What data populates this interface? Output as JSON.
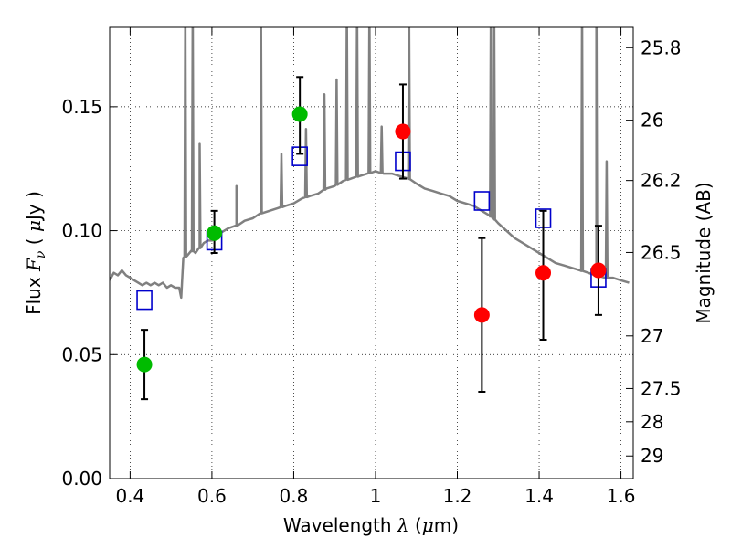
{
  "chart_data": {
    "type": "scatter",
    "xlabel": "Wavelength  λ (μm)",
    "ylabel": "Flux  F_ν  ( μJy )",
    "ylabel_parts": {
      "pre": "Flux ",
      "var": "F",
      "sub": "ν",
      "mid": "  ( ",
      "mu": "μ",
      "post": "Jy )"
    },
    "xlabel_parts": {
      "pre": "Wavelength  ",
      "var": "λ",
      "mid": " (",
      "mu": "μ",
      "post": "m)"
    },
    "y2label": "Magnitude (AB)",
    "xlim": [
      0.35,
      1.63
    ],
    "ylim": [
      0.0,
      0.182
    ],
    "x_ticks": [
      {
        "v": 0.4,
        "label": "0.4"
      },
      {
        "v": 0.6,
        "label": "0.6"
      },
      {
        "v": 0.8,
        "label": "0.8"
      },
      {
        "v": 1.0,
        "label": "1"
      },
      {
        "v": 1.2,
        "label": "1.2"
      },
      {
        "v": 1.4,
        "label": "1.4"
      },
      {
        "v": 1.6,
        "label": "1.6"
      }
    ],
    "y_ticks": [
      {
        "v": 0.0,
        "label": "0.00"
      },
      {
        "v": 0.05,
        "label": "0.05"
      },
      {
        "v": 0.1,
        "label": "0.10"
      },
      {
        "v": 0.15,
        "label": "0.15"
      }
    ],
    "y2_ticks": [
      {
        "mag": 25.8,
        "label": "25.8"
      },
      {
        "mag": 26,
        "label": "26"
      },
      {
        "mag": 26.2,
        "label": "26.2"
      },
      {
        "mag": 26.5,
        "label": "26.5"
      },
      {
        "mag": 27,
        "label": "27"
      },
      {
        "mag": 27.5,
        "label": "27.5"
      },
      {
        "mag": 28,
        "label": "28"
      },
      {
        "mag": 29,
        "label": "29"
      }
    ],
    "grid": true,
    "colors": {
      "model": "#808080",
      "green": "#00bb00",
      "red": "#ff0000",
      "square": "#0000cc",
      "errorbar": "#000000"
    },
    "model_spectrum": {
      "x": [
        0.35,
        0.36,
        0.37,
        0.38,
        0.39,
        0.4,
        0.41,
        0.42,
        0.43,
        0.44,
        0.45,
        0.46,
        0.47,
        0.48,
        0.49,
        0.5,
        0.51,
        0.52,
        0.525,
        0.53,
        0.54,
        0.55,
        0.56,
        0.57,
        0.58,
        0.59,
        0.6,
        0.62,
        0.64,
        0.66,
        0.68,
        0.7,
        0.72,
        0.74,
        0.76,
        0.78,
        0.8,
        0.82,
        0.84,
        0.86,
        0.88,
        0.9,
        0.92,
        0.94,
        0.96,
        0.98,
        1.0,
        1.02,
        1.04,
        1.06,
        1.08,
        1.1,
        1.12,
        1.14,
        1.16,
        1.18,
        1.2,
        1.22,
        1.24,
        1.26,
        1.28,
        1.3,
        1.32,
        1.34,
        1.36,
        1.38,
        1.4,
        1.42,
        1.44,
        1.46,
        1.48,
        1.5,
        1.52,
        1.54,
        1.56,
        1.58,
        1.6,
        1.62
      ],
      "y": [
        0.08,
        0.083,
        0.082,
        0.084,
        0.082,
        0.081,
        0.08,
        0.079,
        0.078,
        0.079,
        0.078,
        0.079,
        0.078,
        0.079,
        0.077,
        0.078,
        0.077,
        0.077,
        0.073,
        0.089,
        0.09,
        0.092,
        0.091,
        0.093,
        0.095,
        0.096,
        0.096,
        0.099,
        0.101,
        0.102,
        0.104,
        0.105,
        0.107,
        0.108,
        0.109,
        0.11,
        0.111,
        0.113,
        0.114,
        0.115,
        0.117,
        0.118,
        0.12,
        0.121,
        0.122,
        0.123,
        0.124,
        0.123,
        0.123,
        0.122,
        0.121,
        0.119,
        0.117,
        0.116,
        0.115,
        0.114,
        0.112,
        0.111,
        0.11,
        0.108,
        0.106,
        0.103,
        0.1,
        0.097,
        0.095,
        0.093,
        0.091,
        0.089,
        0.087,
        0.086,
        0.085,
        0.084,
        0.083,
        0.082,
        0.081,
        0.081,
        0.08,
        0.079
      ]
    },
    "emission_lines": [
      {
        "x": 0.535,
        "peak": 0.19
      },
      {
        "x": 0.553,
        "peak": 0.19
      },
      {
        "x": 0.57,
        "peak": 0.135
      },
      {
        "x": 0.66,
        "peak": 0.118
      },
      {
        "x": 0.72,
        "peak": 0.19
      },
      {
        "x": 0.77,
        "peak": 0.131
      },
      {
        "x": 0.83,
        "peak": 0.141
      },
      {
        "x": 0.875,
        "peak": 0.155
      },
      {
        "x": 0.905,
        "peak": 0.161
      },
      {
        "x": 0.93,
        "peak": 0.19
      },
      {
        "x": 0.955,
        "peak": 0.19
      },
      {
        "x": 0.985,
        "peak": 0.19
      },
      {
        "x": 1.015,
        "peak": 0.142
      },
      {
        "x": 1.082,
        "peak": 0.19
      },
      {
        "x": 1.282,
        "peak": 0.19
      },
      {
        "x": 1.29,
        "peak": 0.19
      },
      {
        "x": 1.505,
        "peak": 0.19
      },
      {
        "x": 1.54,
        "peak": 0.19
      },
      {
        "x": 1.565,
        "peak": 0.128
      }
    ],
    "green_points": [
      {
        "x": 0.435,
        "y": 0.046,
        "ylo": 0.032,
        "yhi": 0.06
      },
      {
        "x": 0.606,
        "y": 0.099,
        "ylo": 0.091,
        "yhi": 0.108
      },
      {
        "x": 0.815,
        "y": 0.147,
        "ylo": 0.131,
        "yhi": 0.162
      }
    ],
    "red_points": [
      {
        "x": 1.067,
        "y": 0.14,
        "ylo": 0.121,
        "yhi": 0.159
      },
      {
        "x": 1.26,
        "y": 0.066,
        "ylo": 0.035,
        "yhi": 0.097
      },
      {
        "x": 1.41,
        "y": 0.083,
        "ylo": 0.056,
        "yhi": 0.108
      },
      {
        "x": 1.545,
        "y": 0.084,
        "ylo": 0.066,
        "yhi": 0.102
      }
    ],
    "model_photometry": [
      {
        "x": 0.435,
        "y": 0.072
      },
      {
        "x": 0.606,
        "y": 0.096
      },
      {
        "x": 0.815,
        "y": 0.13
      },
      {
        "x": 1.067,
        "y": 0.128
      },
      {
        "x": 1.26,
        "y": 0.112
      },
      {
        "x": 1.41,
        "y": 0.105
      },
      {
        "x": 1.545,
        "y": 0.081
      }
    ]
  }
}
